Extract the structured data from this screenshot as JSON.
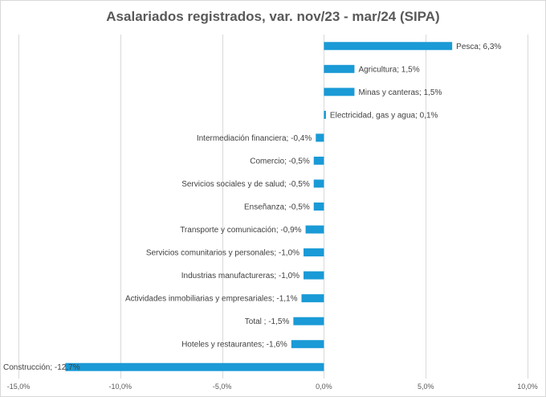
{
  "chart_data": {
    "type": "bar",
    "orientation": "horizontal",
    "title": "Asalariados registrados, var. nov/23 - mar/24 (SIPA)",
    "categories": [
      "Pesca",
      "Agricultura",
      "Minas y canteras",
      "Electricidad, gas y agua",
      "Intermediación financiera",
      "Comercio",
      "Servicios sociales y de salud",
      "Enseñanza",
      "Transporte y comunicación",
      "Servicios comunitarios y personales",
      "Industrias manufactureras",
      "Actividades inmobiliarias y empresariales",
      "Total ",
      "Hoteles y restaurantes",
      "Construcción"
    ],
    "values": [
      6.3,
      1.5,
      1.5,
      0.1,
      -0.4,
      -0.5,
      -0.5,
      -0.5,
      -0.9,
      -1.0,
      -1.0,
      -1.1,
      -1.5,
      -1.6,
      -12.7
    ],
    "data_labels": [
      "Pesca; 6,3%",
      "Agricultura; 1,5%",
      "Minas y canteras; 1,5%",
      "Electricidad, gas y agua; 0,1%",
      "Intermediación financiera; -0,4%",
      "Comercio; -0,5%",
      "Servicios sociales y de salud; -0,5%",
      "Enseñanza; -0,5%",
      "Transporte y comunicación; -0,9%",
      "Servicios comunitarios y personales; -1,0%",
      "Industrias manufactureras; -1,0%",
      "Actividades inmobiliarias y empresariales; -1,1%",
      "Total ; -1,5%",
      "Hoteles y restaurantes; -1,6%",
      "Construcción; -12,7%"
    ],
    "xlim": [
      -15,
      10
    ],
    "x_ticks": [
      -15,
      -10,
      -5,
      0,
      5,
      10
    ],
    "x_tick_labels": [
      "-15,0%",
      "-10,0%",
      "-5,0%",
      "0,0%",
      "5,0%",
      "10,0%"
    ],
    "grid": "vertical",
    "legend": "none",
    "bar_color": "#1a9ad6"
  }
}
